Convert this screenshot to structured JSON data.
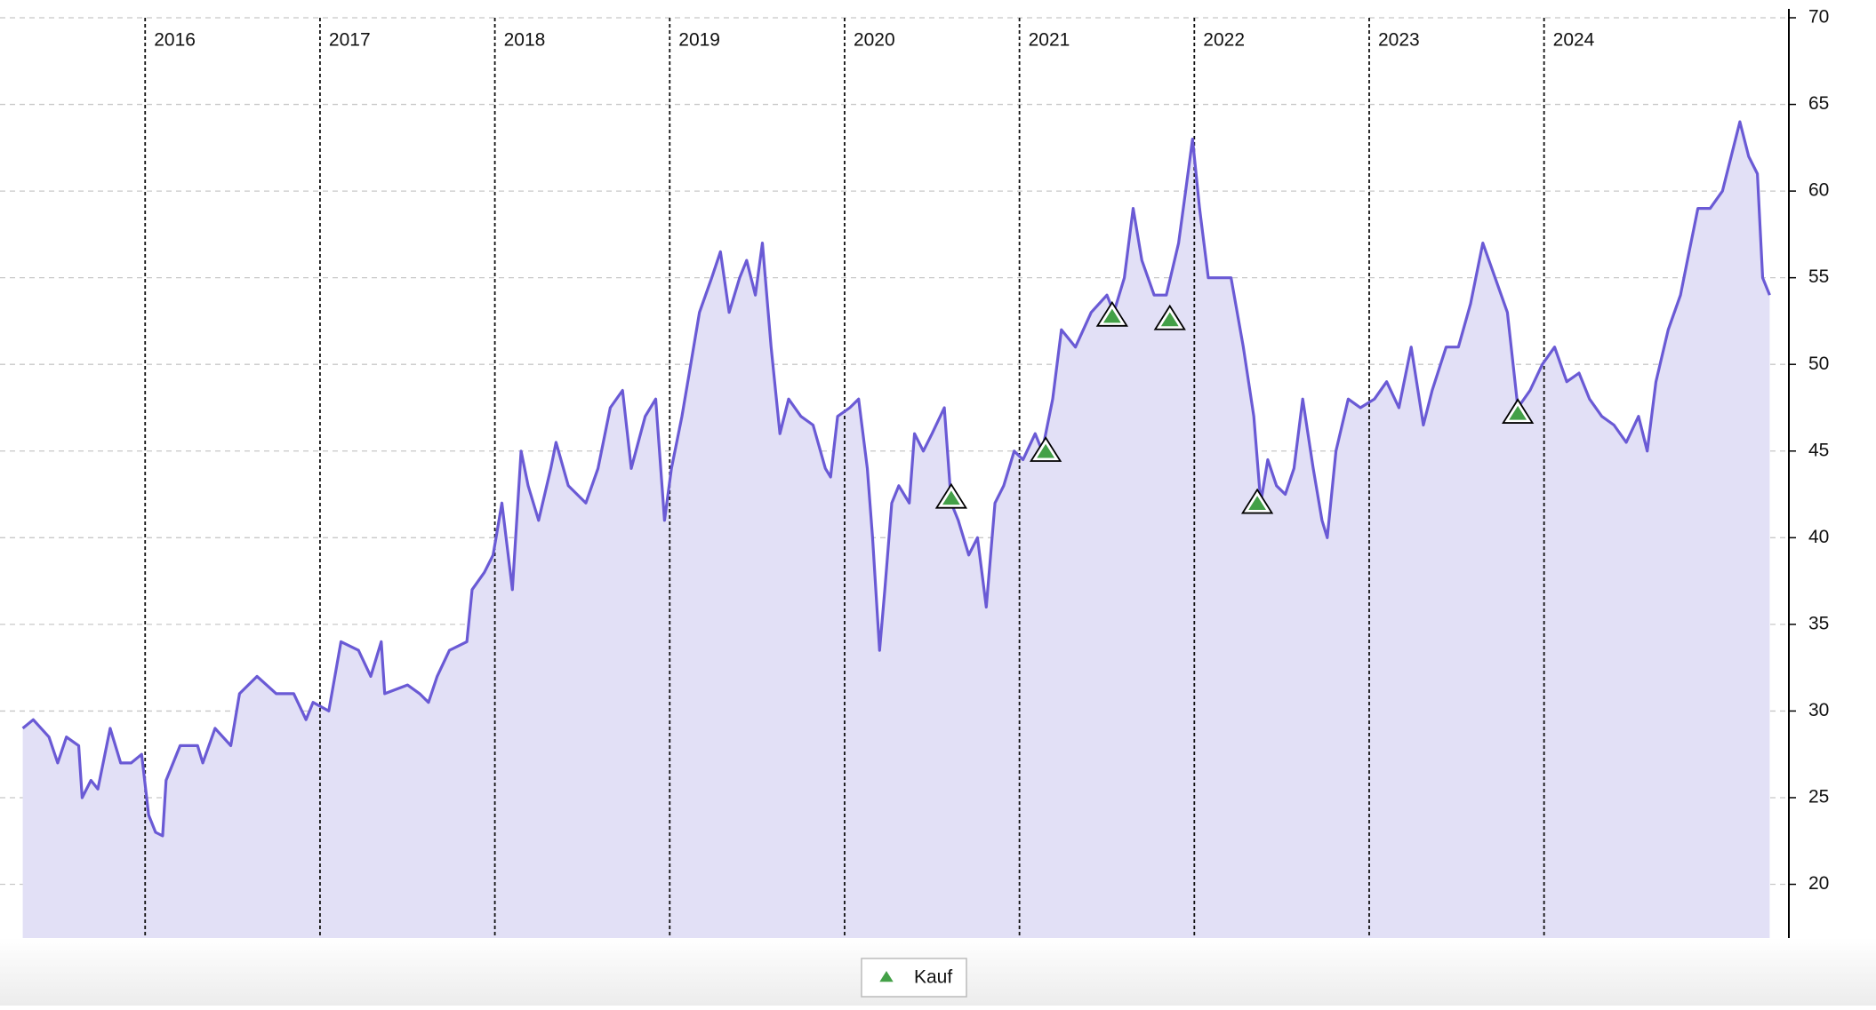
{
  "chart_data": {
    "type": "line",
    "color": "#6a5ad5",
    "fill": "#e2e0f6",
    "grid": true,
    "xlim": [
      2015.17,
      2025.4
    ],
    "xticks": [
      2016,
      2017,
      2018,
      2019,
      2020,
      2021,
      2022,
      2023,
      2024
    ],
    "ylim": [
      16.9,
      70
    ],
    "yticks": [
      20,
      25,
      30,
      35,
      40,
      45,
      50,
      55,
      60,
      65,
      70
    ],
    "x": [
      2015.3,
      2015.36,
      2015.45,
      2015.5,
      2015.55,
      2015.62,
      2015.64,
      2015.69,
      2015.73,
      2015.8,
      2015.86,
      2015.92,
      2015.98,
      2016.02,
      2016.06,
      2016.1,
      2016.12,
      2016.2,
      2016.3,
      2016.33,
      2016.4,
      2016.49,
      2016.54,
      2016.64,
      2016.75,
      2016.85,
      2016.92,
      2016.96,
      2017.05,
      2017.12,
      2017.22,
      2017.29,
      2017.35,
      2017.37,
      2017.5,
      2017.57,
      2017.62,
      2017.67,
      2017.74,
      2017.84,
      2017.87,
      2017.94,
      2017.99,
      2018.04,
      2018.1,
      2018.15,
      2018.19,
      2018.25,
      2018.32,
      2018.35,
      2018.42,
      2018.52,
      2018.59,
      2018.66,
      2018.73,
      2018.78,
      2018.86,
      2018.92,
      2018.97,
      2019.01,
      2019.07,
      2019.12,
      2019.17,
      2019.24,
      2019.29,
      2019.34,
      2019.4,
      2019.44,
      2019.49,
      2019.53,
      2019.58,
      2019.63,
      2019.68,
      2019.75,
      2019.82,
      2019.89,
      2019.92,
      2019.96,
      2020.03,
      2020.08,
      2020.13,
      2020.16,
      2020.2,
      2020.23,
      2020.27,
      2020.31,
      2020.37,
      2020.4,
      2020.45,
      2020.5,
      2020.57,
      2020.61,
      2020.65,
      2020.71,
      2020.76,
      2020.81,
      2020.86,
      2020.91,
      2020.97,
      2021.02,
      2021.09,
      2021.13,
      2021.19,
      2021.24,
      2021.32,
      2021.41,
      2021.5,
      2021.54,
      2021.6,
      2021.65,
      2021.7,
      2021.77,
      2021.84,
      2021.91,
      2021.95,
      2021.99,
      2022.03,
      2022.08,
      2022.14,
      2022.21,
      2022.28,
      2022.34,
      2022.38,
      2022.42,
      2022.47,
      2022.52,
      2022.57,
      2022.62,
      2022.68,
      2022.73,
      2022.76,
      2022.81,
      2022.88,
      2022.95,
      2023.03,
      2023.1,
      2023.17,
      2023.24,
      2023.31,
      2023.36,
      2023.44,
      2023.51,
      2023.58,
      2023.65,
      2023.72,
      2023.79,
      2023.85,
      2023.92,
      2023.99,
      2024.06,
      2024.13,
      2024.2,
      2024.26,
      2024.33,
      2024.4,
      2024.47,
      2024.54,
      2024.59,
      2024.64,
      2024.71,
      2024.78,
      2024.82,
      2024.88,
      2024.95,
      2025.02,
      2025.07,
      2025.12,
      2025.17,
      2025.22,
      2025.25,
      2025.29
    ],
    "values": [
      29,
      29.5,
      28.5,
      27,
      28.5,
      28,
      25,
      26,
      25.5,
      29,
      27,
      27,
      27.5,
      24,
      23,
      22.8,
      26,
      28,
      28,
      27,
      29,
      28,
      31,
      32,
      31,
      31,
      29.5,
      30.5,
      30,
      34,
      33.5,
      32,
      34,
      31,
      31.5,
      31,
      30.5,
      32,
      33.5,
      34,
      37,
      38,
      39,
      42,
      37,
      45,
      43,
      41,
      44,
      45.5,
      43,
      42,
      44,
      47.5,
      48.5,
      44,
      47,
      48,
      41,
      44,
      47,
      50,
      53,
      55,
      56.5,
      53,
      55,
      56,
      54,
      57,
      51,
      46,
      48,
      47,
      46.5,
      44,
      43.5,
      47,
      47.5,
      48,
      44,
      40,
      33.5,
      37,
      42,
      43,
      42,
      46,
      45,
      46,
      47.5,
      42,
      41,
      39,
      40,
      36,
      42,
      43,
      45,
      44.5,
      46,
      45,
      48,
      52,
      51,
      53,
      54,
      53,
      55,
      59,
      56,
      54,
      54,
      57,
      60,
      63,
      59,
      55,
      55,
      55,
      51,
      47,
      42,
      44.5,
      43,
      42.5,
      44,
      48,
      44,
      41,
      40,
      45,
      48,
      47.5,
      48,
      49,
      47.5,
      51,
      46.5,
      48.5,
      51,
      51,
      53.5,
      57,
      55,
      53,
      47.5,
      48.5,
      50,
      51,
      49,
      49.5,
      48,
      47,
      46.5,
      45.5,
      47,
      45,
      49,
      52,
      54,
      56,
      59,
      59,
      60,
      62,
      64,
      62,
      61,
      55,
      54
    ],
    "markers": {
      "name": "Kauf",
      "color": "#43a047",
      "x": [
        2020.61,
        2021.15,
        2021.53,
        2021.86,
        2022.36,
        2023.85
      ],
      "values": [
        42.3,
        45,
        52.8,
        52.6,
        42,
        47.2
      ]
    }
  }
}
